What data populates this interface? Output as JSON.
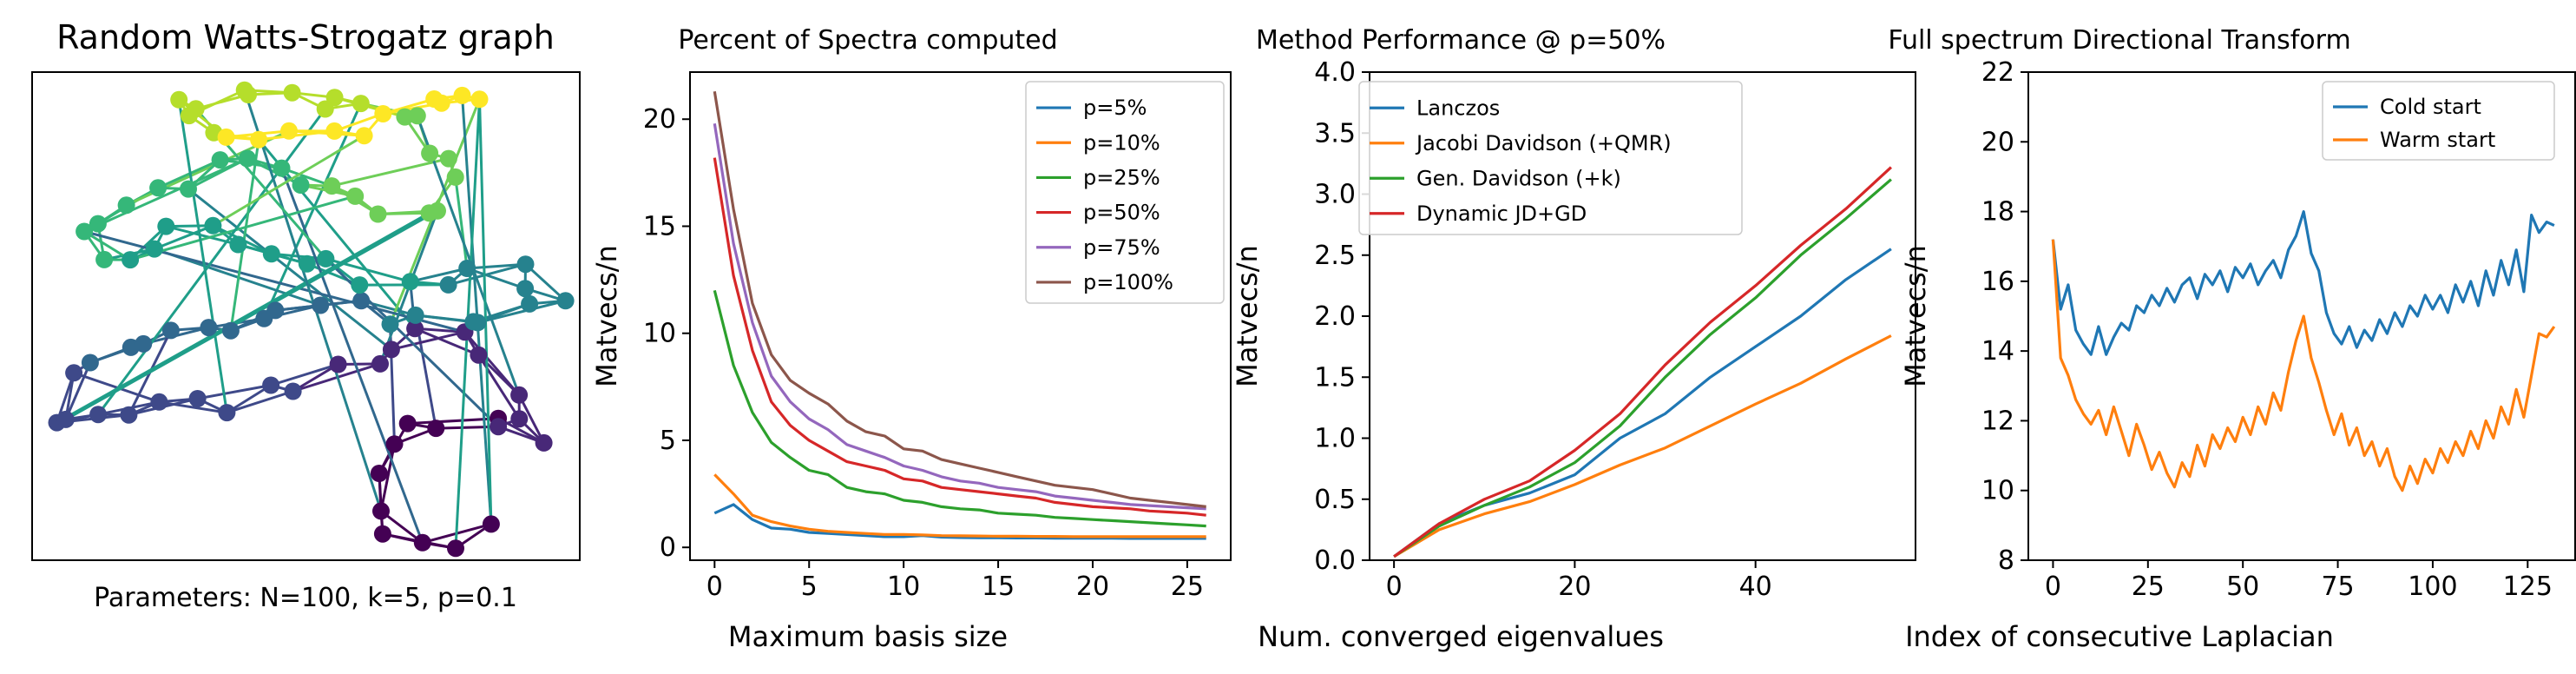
{
  "chart_data": [
    {
      "type": "graph",
      "title": "Random Watts-Strogatz graph",
      "xlabel": "Parameters: N=100, k=5, p=0.1",
      "colormap": "viridis",
      "node_count": 100
    },
    {
      "type": "line",
      "title": "Percent of Spectra computed",
      "xlabel": "Maximum basis size",
      "ylabel": "Matvecs/n",
      "xlim": [
        -1.3,
        27.3
      ],
      "ylim": [
        -0.6,
        22.2
      ],
      "xticks": [
        0,
        5,
        10,
        15,
        20,
        25
      ],
      "yticks": [
        0,
        5,
        10,
        15,
        20
      ],
      "legend_position": "top-right",
      "x": [
        0,
        1,
        2,
        3,
        4,
        5,
        6,
        7,
        8,
        9,
        10,
        11,
        12,
        13,
        14,
        15,
        16,
        17,
        18,
        19,
        20,
        21,
        22,
        23,
        24,
        25,
        26
      ],
      "series": [
        {
          "name": "p=5%",
          "color": "#1f77b4",
          "values": [
            1.6,
            2.0,
            1.3,
            0.9,
            0.85,
            0.7,
            0.65,
            0.6,
            0.55,
            0.5,
            0.5,
            0.55,
            0.48,
            0.46,
            0.45,
            0.45,
            0.44,
            0.44,
            0.43,
            0.43,
            0.43,
            0.43,
            0.42,
            0.42,
            0.42,
            0.42,
            0.42
          ]
        },
        {
          "name": "p=10%",
          "color": "#ff7f0e",
          "values": [
            3.4,
            2.5,
            1.5,
            1.2,
            1.0,
            0.85,
            0.75,
            0.7,
            0.65,
            0.6,
            0.6,
            0.58,
            0.55,
            0.54,
            0.53,
            0.52,
            0.52,
            0.51,
            0.51,
            0.5,
            0.5,
            0.5,
            0.5,
            0.5,
            0.5,
            0.5,
            0.5
          ]
        },
        {
          "name": "p=25%",
          "color": "#2ca02c",
          "values": [
            12.0,
            8.5,
            6.3,
            4.9,
            4.2,
            3.6,
            3.4,
            2.8,
            2.6,
            2.5,
            2.2,
            2.1,
            1.9,
            1.8,
            1.75,
            1.6,
            1.55,
            1.5,
            1.4,
            1.35,
            1.3,
            1.25,
            1.2,
            1.15,
            1.1,
            1.05,
            1.0
          ]
        },
        {
          "name": "p=50%",
          "color": "#d62728",
          "values": [
            18.2,
            12.7,
            9.2,
            6.8,
            5.7,
            5.0,
            4.5,
            4.0,
            3.8,
            3.6,
            3.2,
            3.1,
            2.8,
            2.7,
            2.6,
            2.5,
            2.4,
            2.3,
            2.1,
            2.0,
            1.9,
            1.85,
            1.8,
            1.7,
            1.65,
            1.6,
            1.5
          ]
        },
        {
          "name": "p=75%",
          "color": "#9467bd",
          "values": [
            19.8,
            14.2,
            10.5,
            8.0,
            6.8,
            6.0,
            5.5,
            4.8,
            4.5,
            4.2,
            3.8,
            3.6,
            3.3,
            3.1,
            3.0,
            2.8,
            2.7,
            2.6,
            2.4,
            2.3,
            2.2,
            2.1,
            2.0,
            1.95,
            1.9,
            1.85,
            1.8
          ]
        },
        {
          "name": "p=100%",
          "color": "#8c564b",
          "values": [
            21.3,
            15.8,
            11.4,
            9.0,
            7.8,
            7.2,
            6.7,
            5.9,
            5.4,
            5.2,
            4.6,
            4.5,
            4.1,
            3.9,
            3.7,
            3.5,
            3.3,
            3.1,
            2.9,
            2.8,
            2.7,
            2.5,
            2.3,
            2.2,
            2.1,
            2.0,
            1.9
          ]
        }
      ]
    },
    {
      "type": "line",
      "title": "Method Performance @ p=50%",
      "xlabel": "Num. converged eigenvalues",
      "ylabel": "Matvecs/n",
      "xlim": [
        -2.7,
        57.7
      ],
      "ylim": [
        0.0,
        4.0
      ],
      "xticks": [
        0,
        20,
        40
      ],
      "yticks": [
        0.0,
        0.5,
        1.0,
        1.5,
        2.0,
        2.5,
        3.0,
        3.5,
        4.0
      ],
      "legend_position": "top-left",
      "x": [
        0,
        5,
        10,
        15,
        20,
        25,
        30,
        35,
        40,
        45,
        50,
        55
      ],
      "series": [
        {
          "name": "Lanczos",
          "color": "#1f77b4",
          "values": [
            0.03,
            0.3,
            0.45,
            0.55,
            0.7,
            1.0,
            1.2,
            1.5,
            1.75,
            2.0,
            2.3,
            2.55
          ]
        },
        {
          "name": "Jacobi Davidson (+QMR)",
          "color": "#ff7f0e",
          "values": [
            0.03,
            0.25,
            0.38,
            0.48,
            0.62,
            0.78,
            0.92,
            1.1,
            1.28,
            1.45,
            1.65,
            1.84
          ]
        },
        {
          "name": "Gen. Davidson (+k)",
          "color": "#2ca02c",
          "values": [
            0.03,
            0.28,
            0.45,
            0.6,
            0.8,
            1.1,
            1.5,
            1.85,
            2.15,
            2.5,
            2.8,
            3.12
          ]
        },
        {
          "name": "Dynamic JD+GD",
          "color": "#d62728",
          "values": [
            0.03,
            0.3,
            0.5,
            0.65,
            0.9,
            1.2,
            1.6,
            1.95,
            2.25,
            2.58,
            2.88,
            3.22
          ]
        }
      ]
    },
    {
      "type": "line",
      "title": "Full spectrum Directional Transform",
      "xlabel": "Index of consecutive Laplacian",
      "ylabel": "Matvecs/n",
      "xlim": [
        -6.5,
        137.5
      ],
      "ylim": [
        8,
        22
      ],
      "xticks": [
        0,
        25,
        50,
        75,
        100,
        125
      ],
      "yticks": [
        8,
        10,
        12,
        14,
        16,
        18,
        20,
        22
      ],
      "legend_position": "top-right",
      "x": [
        0,
        2,
        4,
        6,
        8,
        10,
        12,
        14,
        16,
        18,
        20,
        22,
        24,
        26,
        28,
        30,
        32,
        34,
        36,
        38,
        40,
        42,
        44,
        46,
        48,
        50,
        52,
        54,
        56,
        58,
        60,
        62,
        64,
        66,
        68,
        70,
        72,
        74,
        76,
        78,
        80,
        82,
        84,
        86,
        88,
        90,
        92,
        94,
        96,
        98,
        100,
        102,
        104,
        106,
        108,
        110,
        112,
        114,
        116,
        118,
        120,
        122,
        124,
        126,
        128,
        130,
        132
      ],
      "series": [
        {
          "name": "Cold start",
          "color": "#1f77b4",
          "values": [
            17.2,
            15.2,
            15.9,
            14.6,
            14.2,
            13.9,
            14.7,
            13.9,
            14.4,
            14.8,
            14.6,
            15.3,
            15.1,
            15.6,
            15.3,
            15.8,
            15.4,
            15.9,
            16.1,
            15.5,
            16.2,
            15.9,
            16.3,
            15.7,
            16.4,
            16.1,
            16.5,
            15.9,
            16.3,
            16.6,
            16.1,
            16.9,
            17.3,
            18.0,
            16.8,
            16.3,
            15.1,
            14.5,
            14.2,
            14.7,
            14.1,
            14.6,
            14.3,
            14.9,
            14.5,
            15.1,
            14.7,
            15.3,
            15.0,
            15.6,
            15.2,
            15.6,
            15.1,
            15.9,
            15.4,
            16.0,
            15.3,
            16.3,
            15.6,
            16.6,
            15.9,
            16.9,
            15.7,
            17.9,
            17.4,
            17.7,
            17.6
          ]
        },
        {
          "name": "Warm start",
          "color": "#ff7f0e",
          "values": [
            17.2,
            13.8,
            13.3,
            12.6,
            12.2,
            11.9,
            12.3,
            11.6,
            12.4,
            11.7,
            11.0,
            11.9,
            11.3,
            10.6,
            11.1,
            10.5,
            10.1,
            10.8,
            10.4,
            11.3,
            10.7,
            11.6,
            11.2,
            11.8,
            11.4,
            12.1,
            11.6,
            12.4,
            11.9,
            12.8,
            12.3,
            13.4,
            14.3,
            15.0,
            13.8,
            13.1,
            12.3,
            11.6,
            12.2,
            11.3,
            11.8,
            11.0,
            11.4,
            10.7,
            11.2,
            10.4,
            10.0,
            10.7,
            10.2,
            10.9,
            10.5,
            11.2,
            10.8,
            11.4,
            11.0,
            11.7,
            11.2,
            12.0,
            11.5,
            12.4,
            11.9,
            12.9,
            12.1,
            13.3,
            14.5,
            14.4,
            14.7
          ]
        }
      ]
    }
  ]
}
